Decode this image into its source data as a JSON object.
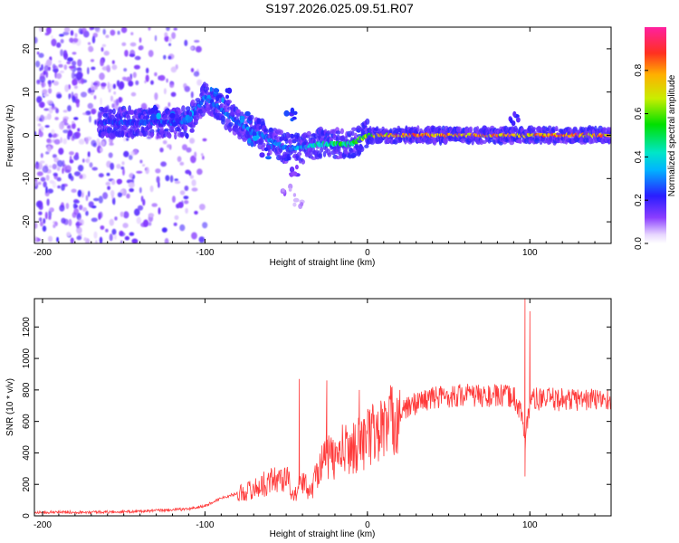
{
  "page_title": "S197.2026.025.09.51.R07",
  "chart_data": [
    {
      "type": "heatmap",
      "title": "S197.2026.025.09.51.R07",
      "xlabel": "Height of straight line (km)",
      "ylabel": "Frequency (Hz)",
      "xlim": [
        -205,
        150
      ],
      "ylim": [
        -25,
        25
      ],
      "xticks": [
        "-200",
        "-100",
        "0",
        "100"
      ],
      "xtick_values": [
        -200,
        -100,
        0,
        100
      ],
      "yticks": [
        "-20",
        "-10",
        "0",
        "10",
        "20"
      ],
      "ytick_values": [
        -20,
        -10,
        0,
        10,
        20
      ],
      "colorbar": {
        "label": "Normalized spectral amplitude",
        "range": [
          0,
          1
        ],
        "ticks": [
          "0.0",
          "0.2",
          "0.4",
          "0.6",
          "0.8"
        ],
        "tick_values": [
          0,
          0.2,
          0.4,
          0.6,
          0.8
        ]
      },
      "ridge": {
        "description_x": [
          -150,
          -130,
          -110,
          -100,
          -90,
          -80,
          -70,
          -60,
          -50,
          -40,
          -30,
          -20,
          -10,
          0,
          20,
          50,
          90,
          120,
          150
        ],
        "frequency_hz": [
          3,
          3,
          3,
          9,
          6,
          3,
          1,
          -1,
          -3,
          -3,
          -2,
          -2,
          -2,
          0,
          0,
          0,
          0,
          0,
          0
        ],
        "amplitude": [
          0.25,
          0.25,
          0.3,
          0.3,
          0.28,
          0.3,
          0.32,
          0.35,
          0.3,
          0.35,
          0.45,
          0.55,
          0.5,
          0.7,
          0.85,
          0.85,
          0.8,
          0.85,
          0.85
        ]
      },
      "noise_region_x": [
        -205,
        -100
      ]
    },
    {
      "type": "line",
      "title": "",
      "xlabel": "Height of straight line (km)",
      "ylabel": "SNR (10 * v/v)",
      "xlim": [
        -205,
        150
      ],
      "ylim": [
        0,
        1380
      ],
      "xticks": [
        "-200",
        "-100",
        "0",
        "100"
      ],
      "xtick_values": [
        -200,
        -100,
        0,
        100
      ],
      "yticks": [
        "0",
        "200",
        "400",
        "600",
        "800",
        "1000",
        "1200"
      ],
      "ytick_values": [
        0,
        200,
        400,
        600,
        800,
        1000,
        1200
      ],
      "color": "#ff3b3b",
      "series": [
        {
          "name": "SNR",
          "x": [
            -205,
            -180,
            -150,
            -130,
            -110,
            -100,
            -90,
            -80,
            -70,
            -60,
            -50,
            -45,
            -40,
            -35,
            -30,
            -25,
            -20,
            -15,
            -10,
            -5,
            0,
            10,
            20,
            30,
            40,
            50,
            60,
            70,
            80,
            90,
            95,
            97,
            100,
            110,
            120,
            130,
            140,
            150
          ],
          "values": [
            20,
            20,
            22,
            30,
            40,
            60,
            110,
            140,
            170,
            220,
            250,
            120,
            230,
            140,
            320,
            380,
            360,
            420,
            430,
            460,
            500,
            560,
            650,
            720,
            750,
            760,
            770,
            760,
            760,
            760,
            650,
            450,
            740,
            740,
            740,
            740,
            740,
            740
          ]
        }
      ],
      "spikes": [
        {
          "x": -42,
          "value": 870
        },
        {
          "x": -25,
          "value": 860
        },
        {
          "x": -5,
          "value": 800
        },
        {
          "x": 20,
          "value": 800
        },
        {
          "x": 97,
          "value": 1380
        },
        {
          "x": 100,
          "value": 1300
        },
        {
          "x": 97,
          "value": 250
        }
      ]
    }
  ]
}
